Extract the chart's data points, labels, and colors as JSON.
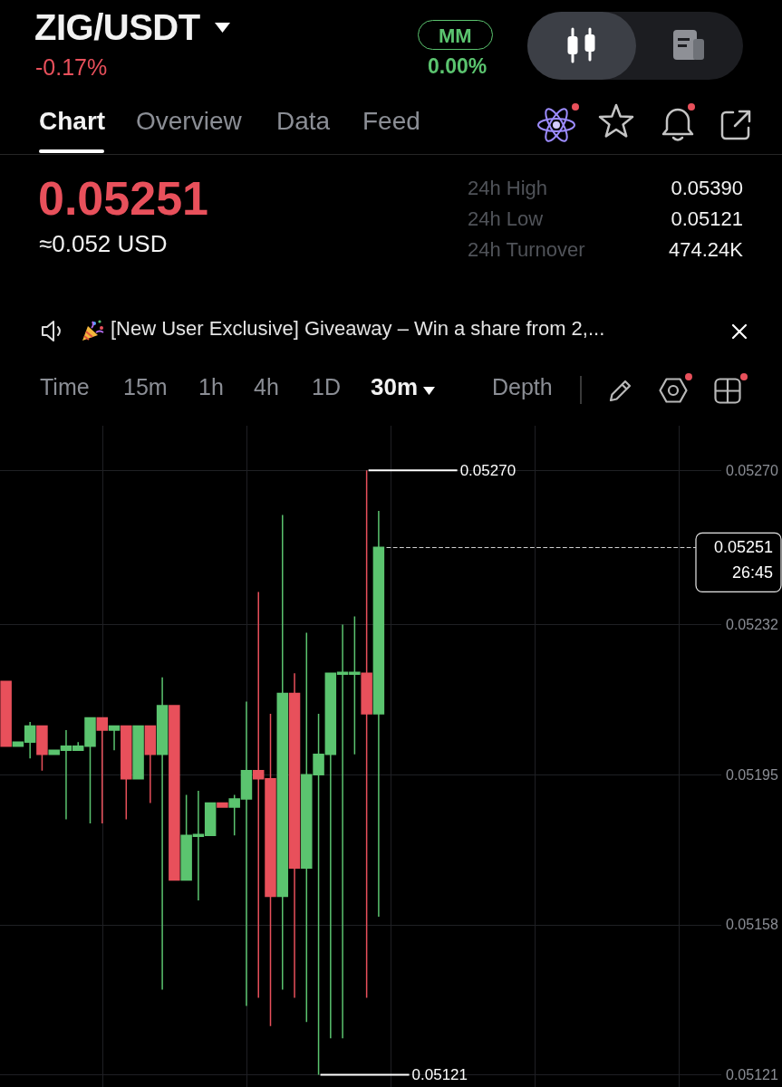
{
  "chart_data": {
    "type": "candlestick",
    "title": "ZIG/USDT",
    "subtitle": "-0.17%",
    "annotations": [
      "MM",
      "0.00%",
      "Chart",
      "Overview",
      "Data",
      "Feed",
      "0.05251",
      "≈0.052 USD",
      "24h High",
      "0.05390",
      "24h Low",
      "0.05121",
      "24h Turnover",
      "474.24K",
      "[New User Exclusive] Giveaway – Win a share from 2,...",
      "Time",
      "15m",
      "1h",
      "4h",
      "1D",
      "30m",
      "Depth",
      "0.05270",
      "0.05121",
      "26:45"
    ],
    "categories": [
      null,
      null,
      null,
      null,
      null,
      null,
      null,
      null,
      null,
      null,
      null,
      null,
      null,
      null,
      null,
      null,
      null,
      null,
      null,
      null,
      null,
      null,
      null,
      null,
      null,
      null,
      null,
      null,
      null,
      null,
      null,
      null,
      null,
      null,
      null,
      null,
      null,
      null,
      null,
      null,
      null,
      null,
      null,
      null,
      null,
      null,
      null,
      null,
      null,
      null,
      null,
      null,
      null,
      null,
      null,
      null,
      null,
      null,
      null,
      null
    ],
    "ohlc": [
      [
        0.05218,
        0.05218,
        0.05202,
        0.05202
      ],
      [
        0.05202,
        0.05203,
        0.05202,
        0.05203
      ],
      [
        0.05203,
        0.05208,
        0.05199,
        0.05207
      ],
      [
        0.05207,
        0.05207,
        0.05196,
        0.052
      ],
      [
        0.052,
        0.05201,
        0.052,
        0.05201
      ],
      [
        0.05201,
        0.05206,
        0.05184,
        0.05202
      ],
      [
        0.05201,
        0.05203,
        0.05201,
        0.05202
      ],
      [
        0.05202,
        0.05209,
        0.05183,
        0.05209
      ],
      [
        0.05209,
        0.05209,
        0.05183,
        0.05206
      ],
      [
        0.05206,
        0.05207,
        0.05201,
        0.05207
      ],
      [
        0.05207,
        0.05207,
        0.05184,
        0.05194
      ],
      [
        0.05194,
        0.05207,
        0.05194,
        0.05207
      ],
      [
        0.05207,
        0.05207,
        0.05188,
        0.052
      ],
      [
        0.052,
        0.05219,
        0.05142,
        0.05212
      ],
      [
        0.05212,
        0.05212,
        0.05169,
        0.05169
      ],
      [
        0.05169,
        0.0519,
        0.05169,
        0.0518
      ],
      [
        0.0518,
        0.05191,
        0.05164,
        0.0518
      ],
      [
        0.0518,
        0.05188,
        0.0518,
        0.05188
      ],
      [
        0.05188,
        0.05188,
        0.05187,
        0.05187
      ],
      [
        0.05187,
        0.0519,
        0.0518,
        0.05189
      ],
      [
        0.05189,
        0.05213,
        0.05138,
        0.05196
      ],
      [
        0.05196,
        0.0524,
        0.0514,
        0.05194
      ],
      [
        0.05194,
        0.0521,
        0.05133,
        0.05165
      ],
      [
        0.05165,
        0.05259,
        0.05142,
        0.05215
      ],
      [
        0.05215,
        0.0522,
        0.0514,
        0.05172
      ],
      [
        0.05172,
        0.0523,
        0.05134,
        0.05195
      ],
      [
        0.05195,
        0.0521,
        0.05121,
        0.052
      ],
      [
        0.052,
        0.0522,
        0.0513,
        0.0522
      ],
      [
        0.0522,
        0.05232,
        0.0513,
        0.0522
      ],
      [
        0.0522,
        0.05234,
        0.052,
        0.0522
      ],
      [
        0.0522,
        0.0527,
        0.0514,
        0.0521
      ],
      [
        0.0521,
        0.0526,
        0.0516,
        0.05251
      ],
      null,
      null,
      null,
      null,
      null,
      null,
      null,
      null,
      null,
      null,
      null,
      null,
      null,
      null,
      null,
      null,
      null,
      null,
      null,
      null,
      null,
      null,
      null,
      null,
      null,
      null,
      null,
      null
    ],
    "colors": [
      "#e8505b",
      "#5bc46f",
      "#5bc46f",
      "#e8505b",
      "#5bc46f",
      "#5bc46f",
      "#5bc46f",
      "#5bc46f",
      "#e8505b",
      "#5bc46f",
      "#e8505b",
      "#5bc46f",
      "#e8505b",
      "#5bc46f",
      "#e8505b",
      "#5bc46f",
      "#5bc46f",
      "#5bc46f",
      "#e8505b",
      "#5bc46f",
      "#5bc46f",
      "#e8505b",
      "#e8505b",
      "#5bc46f",
      "#e8505b",
      "#5bc46f",
      "#5bc46f",
      "#5bc46f",
      "#5bc46f",
      "#5bc46f",
      "#e8505b",
      "#5bc46f",
      null,
      null,
      null,
      null,
      null,
      null,
      null,
      null,
      null,
      null,
      null,
      null,
      null,
      null,
      null,
      null,
      null,
      null,
      null,
      null,
      null,
      null,
      null,
      null,
      null,
      null,
      null,
      null
    ],
    "ylim": [
      0.05118,
      0.05281
    ],
    "yticks": [
      {
        "value": 0.0527,
        "label": "0.05270"
      },
      0.05232,
      0.05195,
      0.05158,
      0.05121
    ],
    "grid": true,
    "tick_labels": "y",
    "ref_lines": [
      {
        "axis": "y",
        "value": 0.05251,
        "label": "0.05251",
        "color": "#cfcfcf",
        "line_style": "dashed"
      }
    ]
  }
}
